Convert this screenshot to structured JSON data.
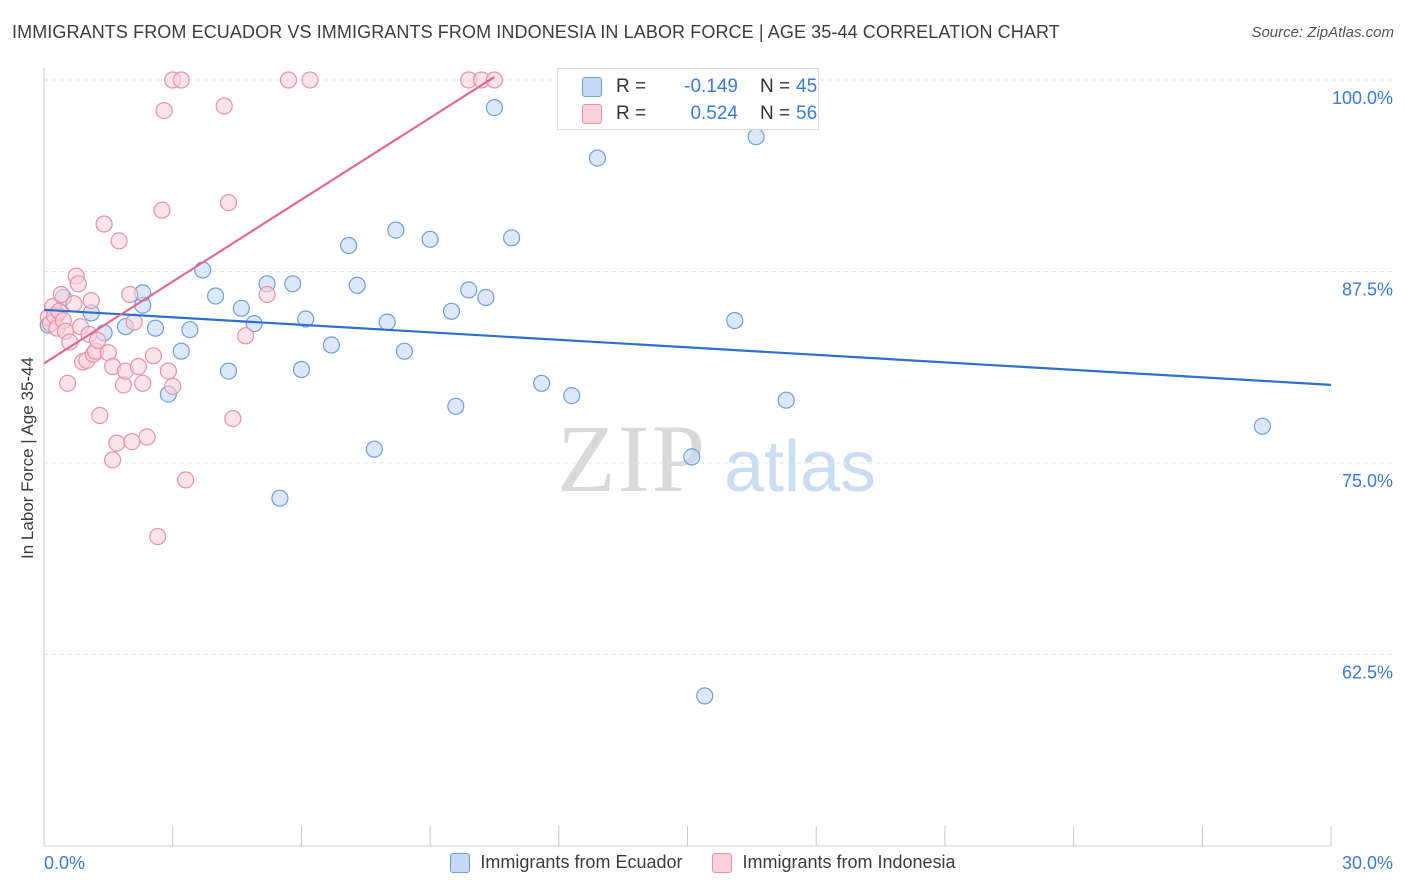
{
  "title": "IMMIGRANTS FROM ECUADOR VS IMMIGRANTS FROM INDONESIA IN LABOR FORCE | AGE 35-44 CORRELATION CHART",
  "source": "Source: ZipAtlas.com",
  "watermark": {
    "zip": "ZIP",
    "atlas": "atlas"
  },
  "colors": {
    "blue_fill": "#c5d9f5",
    "blue_stroke": "#6f9fd8",
    "blue_line": "#2d6fcf",
    "pink_fill": "#f9d0dc",
    "pink_stroke": "#e890aa",
    "pink_line": "#e06a92",
    "accent_text": "#3a7bd5",
    "grid": "#e3e3e3"
  },
  "stats": {
    "row1": {
      "r_label": "R =",
      "r_value": "-0.149",
      "n_label": "N =",
      "n_value": "45"
    },
    "row2": {
      "r_label": "R =",
      "r_value": "0.524",
      "n_label": "N =",
      "n_value": "56"
    }
  },
  "legend": {
    "ecuador": "Immigrants from Ecuador",
    "indonesia": "Immigrants from Indonesia"
  },
  "chart_data": {
    "type": "scatter",
    "xlabel": "",
    "ylabel": "In Labor Force | Age 35-44",
    "xlim": [
      0,
      30
    ],
    "ylim": [
      50,
      102
    ],
    "x_tick_labels": [
      "0.0%",
      "30.0%"
    ],
    "y_ticks": [
      62.5,
      75.0,
      87.5,
      100.0
    ],
    "y_tick_labels": [
      "62.5%",
      "75.0%",
      "87.5%",
      "100.0%"
    ],
    "grid": "horizontal dashed",
    "legend_position": "bottom-center",
    "series": [
      {
        "name": "Immigrants from Ecuador",
        "color": "blue",
        "r": -0.149,
        "n": 45,
        "trend": {
          "x": [
            0,
            30
          ],
          "y": [
            85.0,
            80.1
          ]
        },
        "points": [
          [
            0.1,
            84.0
          ],
          [
            0.3,
            84.7
          ],
          [
            0.45,
            85.8
          ],
          [
            1.1,
            84.8
          ],
          [
            1.4,
            83.5
          ],
          [
            1.9,
            83.9
          ],
          [
            2.3,
            85.3
          ],
          [
            2.3,
            86.1
          ],
          [
            2.6,
            83.8
          ],
          [
            2.9,
            79.5
          ],
          [
            3.2,
            82.3
          ],
          [
            3.4,
            83.7
          ],
          [
            3.7,
            87.6
          ],
          [
            4.0,
            85.9
          ],
          [
            4.3,
            81.0
          ],
          [
            4.6,
            85.1
          ],
          [
            4.9,
            84.1
          ],
          [
            5.2,
            86.7
          ],
          [
            5.5,
            72.7
          ],
          [
            5.8,
            86.7
          ],
          [
            6.1,
            84.4
          ],
          [
            6.0,
            81.1
          ],
          [
            6.7,
            82.7
          ],
          [
            7.1,
            89.2
          ],
          [
            7.3,
            86.6
          ],
          [
            7.7,
            75.9
          ],
          [
            8.0,
            84.2
          ],
          [
            8.2,
            90.2
          ],
          [
            8.4,
            82.3
          ],
          [
            9.0,
            89.6
          ],
          [
            9.5,
            84.9
          ],
          [
            9.6,
            78.7
          ],
          [
            9.9,
            86.3
          ],
          [
            10.3,
            85.8
          ],
          [
            10.5,
            98.2
          ],
          [
            10.9,
            89.7
          ],
          [
            11.6,
            80.2
          ],
          [
            12.3,
            79.4
          ],
          [
            12.9,
            94.9
          ],
          [
            15.1,
            75.4
          ],
          [
            15.4,
            59.8
          ],
          [
            16.1,
            84.3
          ],
          [
            16.6,
            96.3
          ],
          [
            17.3,
            79.1
          ],
          [
            28.4,
            77.4
          ]
        ]
      },
      {
        "name": "Immigrants from Indonesia",
        "color": "pink",
        "r": 0.524,
        "n": 56,
        "trend": {
          "x": [
            0,
            10.5
          ],
          "y": [
            81.5,
            100.2
          ]
        },
        "points": [
          [
            0.1,
            84.5
          ],
          [
            0.15,
            84.1
          ],
          [
            0.2,
            85.2
          ],
          [
            0.25,
            84.6
          ],
          [
            0.3,
            83.8
          ],
          [
            0.35,
            84.9
          ],
          [
            0.4,
            86.0
          ],
          [
            0.45,
            84.3
          ],
          [
            0.5,
            83.6
          ],
          [
            0.55,
            80.2
          ],
          [
            0.6,
            82.9
          ],
          [
            0.7,
            85.4
          ],
          [
            0.75,
            87.2
          ],
          [
            0.8,
            86.7
          ],
          [
            0.85,
            83.9
          ],
          [
            0.9,
            81.6
          ],
          [
            1.0,
            81.7
          ],
          [
            1.05,
            83.4
          ],
          [
            1.1,
            85.6
          ],
          [
            1.15,
            82.1
          ],
          [
            1.2,
            82.3
          ],
          [
            1.25,
            83.0
          ],
          [
            1.3,
            78.1
          ],
          [
            1.4,
            90.6
          ],
          [
            1.5,
            82.2
          ],
          [
            1.6,
            81.3
          ],
          [
            1.7,
            76.3
          ],
          [
            1.6,
            75.2
          ],
          [
            1.75,
            89.5
          ],
          [
            1.85,
            80.1
          ],
          [
            1.9,
            81.0
          ],
          [
            2.0,
            86.0
          ],
          [
            2.05,
            76.4
          ],
          [
            2.1,
            84.2
          ],
          [
            2.2,
            81.3
          ],
          [
            2.3,
            80.2
          ],
          [
            2.4,
            76.7
          ],
          [
            2.55,
            82.0
          ],
          [
            2.65,
            70.2
          ],
          [
            2.75,
            91.5
          ],
          [
            2.8,
            98.0
          ],
          [
            2.9,
            81.0
          ],
          [
            3.0,
            80.0
          ],
          [
            3.0,
            100.0
          ],
          [
            3.2,
            100.0
          ],
          [
            3.3,
            73.9
          ],
          [
            4.2,
            98.3
          ],
          [
            4.3,
            92.0
          ],
          [
            4.4,
            77.9
          ],
          [
            4.7,
            83.3
          ],
          [
            5.2,
            86.0
          ],
          [
            5.7,
            100.0
          ],
          [
            6.2,
            100.0
          ],
          [
            9.9,
            100.0
          ],
          [
            10.2,
            100.0
          ],
          [
            10.5,
            100.0
          ]
        ]
      }
    ]
  }
}
